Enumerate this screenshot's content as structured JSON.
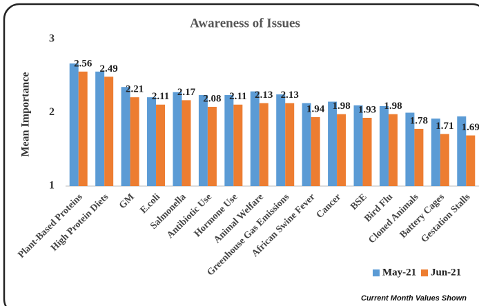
{
  "chart_data": {
    "type": "bar",
    "title": "Awareness of Issues",
    "y_label": "Mean Importance",
    "categories": [
      "Plant-Based Proteins",
      "High Protein Diets",
      "GM",
      "E.coli",
      "Salmonella",
      "Antibiotic Use",
      "Hormone Use",
      "Animal Welfare",
      "Greenhouse Gas Emissions",
      "African Swine Fever",
      "Cancer",
      "BSE",
      "Bird Flu",
      "Cloned Animals",
      "Battery Cages",
      "Gestation Stalls"
    ],
    "series": [
      {
        "name": "May-21",
        "color": "#5b9bd5",
        "values": [
          2.67,
          2.56,
          2.35,
          2.21,
          2.28,
          2.24,
          2.24,
          2.29,
          2.25,
          2.13,
          2.15,
          2.1,
          2.09,
          2.0,
          1.92,
          1.95
        ]
      },
      {
        "name": "Jun-21",
        "color": "#ed7d31",
        "values": [
          2.56,
          2.49,
          2.21,
          2.11,
          2.17,
          2.08,
          2.11,
          2.13,
          2.13,
          1.94,
          1.98,
          1.93,
          1.98,
          1.78,
          1.71,
          1.69
        ],
        "show_value_labels": true
      }
    ],
    "ylim": [
      1,
      3
    ],
    "yticks": [
      1,
      2,
      3
    ],
    "grid": false,
    "legend": "bottom-right",
    "annotation": "Current Month Values Shown"
  }
}
